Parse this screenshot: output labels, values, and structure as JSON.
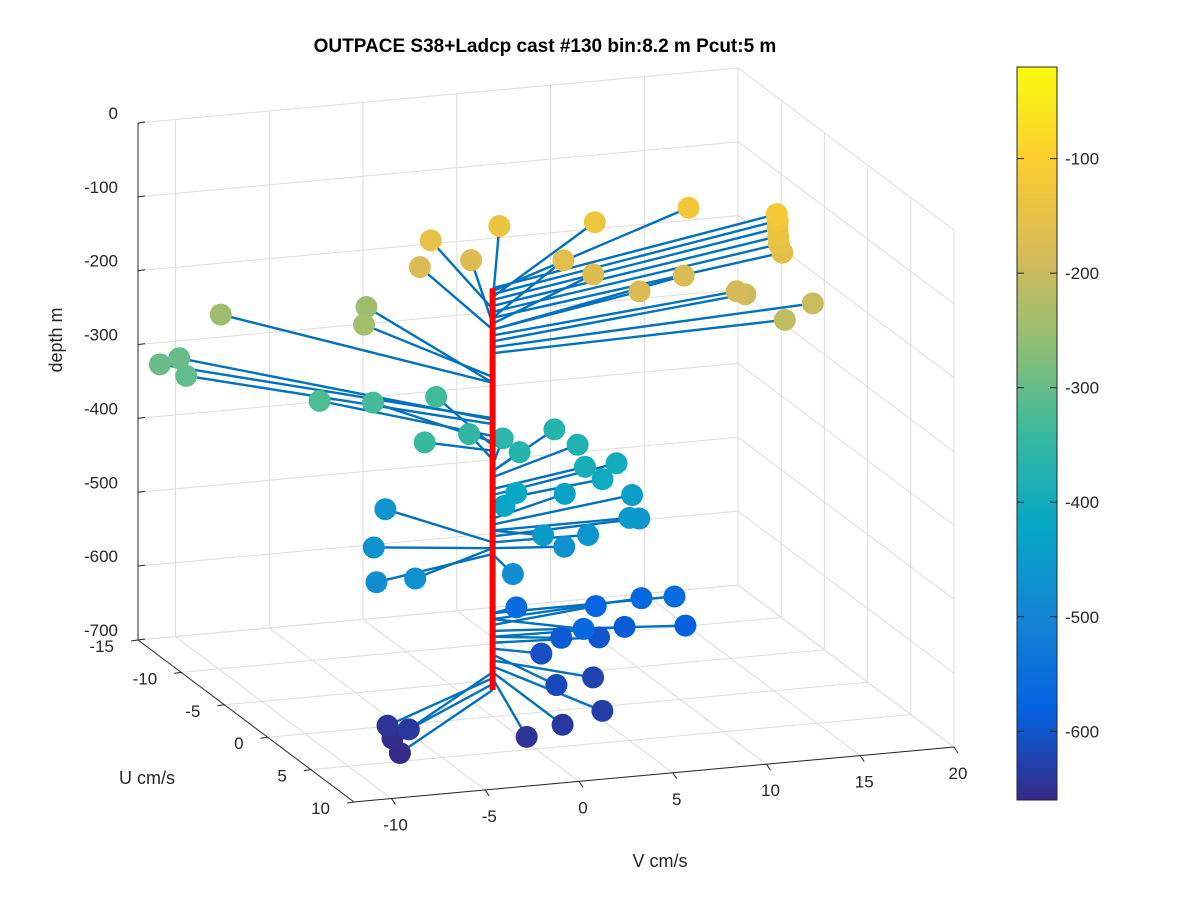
{
  "chart_data": {
    "type": "scatter",
    "title": "OUTPACE S38+Ladcp cast #130 bin:8.2 m  Pcut:5 m",
    "xlabel": "V cm/s",
    "ylabel": "U cm/s",
    "zlabel": "depth m",
    "xlim": [
      -12,
      20
    ],
    "ylim": [
      -15,
      10
    ],
    "zlim": [
      -700,
      0
    ],
    "x_ticks": [
      -10,
      -5,
      0,
      5,
      10,
      15,
      20
    ],
    "y_ticks": [
      -15,
      -10,
      -5,
      0,
      5,
      10
    ],
    "z_ticks": [
      0,
      -100,
      -200,
      -300,
      -400,
      -500,
      -600,
      -700
    ],
    "grid": true,
    "colorbar": {
      "colormap": "parula",
      "range": [
        -660,
        -20
      ],
      "ticks": [
        -100,
        -200,
        -300,
        -400,
        -500,
        -600
      ]
    },
    "vertical_line_color": "#ff0000",
    "stick_color": "#0072bd",
    "series": [
      {
        "points": [
          {
            "v": 18.2,
            "u": -6.6,
            "z": -120
          },
          {
            "v": 18.2,
            "u": -6.5,
            "z": -128
          },
          {
            "v": 18.1,
            "u": -6.3,
            "z": -136
          },
          {
            "v": 18.0,
            "u": -6.0,
            "z": -144
          },
          {
            "v": 17.9,
            "u": -5.7,
            "z": -152
          },
          {
            "v": 17.9,
            "u": -5.3,
            "z": -160
          },
          {
            "v": 14.6,
            "u": -9.0,
            "z": -124
          },
          {
            "v": 9.6,
            "u": -9.0,
            "z": -132
          },
          {
            "v": 5.2,
            "u": -10.5,
            "z": -140
          },
          {
            "v": 1.4,
            "u": -10.2,
            "z": -148
          },
          {
            "v": 7.9,
            "u": -5.5,
            "z": -168
          },
          {
            "v": 9.4,
            "u": -3.4,
            "z": -176
          },
          {
            "v": 14.4,
            "u": -3.0,
            "z": -184
          },
          {
            "v": 12.5,
            "u": -5.0,
            "z": -176
          },
          {
            "v": 15.0,
            "u": -3.3,
            "z": -192
          },
          {
            "v": 18.0,
            "u": -2.0,
            "z": -200
          },
          {
            "v": 16.0,
            "u": -0.9,
            "z": -208
          },
          {
            "v": 7.0,
            "u": -7.0,
            "z": -160
          },
          {
            "v": 3.0,
            "u": -9.0,
            "z": -168
          },
          {
            "v": 0.5,
            "u": -9.5,
            "z": -176
          },
          {
            "v": -1.2,
            "u": -12.0,
            "z": -248
          },
          {
            "v": -2.8,
            "u": -8.8,
            "z": -240
          },
          {
            "v": -8.6,
            "u": -12.8,
            "z": -248
          },
          {
            "v": -6.0,
            "u": -7.0,
            "z": -320
          },
          {
            "v": -12.4,
            "u": -11.6,
            "z": -296
          },
          {
            "v": -11.5,
            "u": -10.5,
            "z": -304
          },
          {
            "v": -11.0,
            "u": -12.4,
            "z": -298
          },
          {
            "v": -3.2,
            "u": -6.9,
            "z": -328
          },
          {
            "v": 0.4,
            "u": -7.4,
            "z": -333
          },
          {
            "v": -2.7,
            "u": -2.0,
            "z": -340
          },
          {
            "v": 0.5,
            "u": -3.8,
            "z": -352
          },
          {
            "v": 2.2,
            "u": -3.6,
            "z": -360
          },
          {
            "v": 5.6,
            "u": -5.0,
            "z": -368
          },
          {
            "v": 6.1,
            "u": -3.4,
            "z": -376
          },
          {
            "v": 2.5,
            "u": -2.3,
            "z": -368
          },
          {
            "v": 7.9,
            "u": -2.8,
            "z": -400
          },
          {
            "v": 6.6,
            "u": -1.6,
            "z": -408
          },
          {
            "v": 5.8,
            "u": -1.9,
            "z": -392
          },
          {
            "v": 2.0,
            "u": -1.6,
            "z": -416
          },
          {
            "v": 1.0,
            "u": -0.8,
            "z": -424
          },
          {
            "v": 5.0,
            "u": -2.5,
            "z": -432
          },
          {
            "v": 8.5,
            "u": -2.3,
            "z": -440
          },
          {
            "v": 7.3,
            "u": 0.0,
            "z": -448
          },
          {
            "v": 8.1,
            "u": -0.6,
            "z": -456
          },
          {
            "v": 2.1,
            "u": 1.3,
            "z": -448
          },
          {
            "v": 5.0,
            "u": 0.2,
            "z": -464
          },
          {
            "v": 3.5,
            "u": 0.7,
            "z": -472
          },
          {
            "v": -3.0,
            "u": -5.9,
            "z": -464
          },
          {
            "v": -5.6,
            "u": -1.6,
            "z": -472
          },
          {
            "v": -7.3,
            "u": 2.4,
            "z": -480
          },
          {
            "v": -5.6,
            "u": 3.2,
            "z": -472
          },
          {
            "v": -0.3,
            "u": 3.0,
            "z": -480
          },
          {
            "v": 1.5,
            "u": -0.5,
            "z": -560
          },
          {
            "v": 3.7,
            "u": 2.5,
            "z": -568
          },
          {
            "v": 6.1,
            "u": -1.3,
            "z": -576
          },
          {
            "v": 8.4,
            "u": -1.0,
            "z": -568
          },
          {
            "v": 9.7,
            "u": 0.0,
            "z": -560
          },
          {
            "v": 9.5,
            "u": 1.7,
            "z": -584
          },
          {
            "v": 6.9,
            "u": 0.3,
            "z": -592
          },
          {
            "v": 5.4,
            "u": 0.6,
            "z": -600
          },
          {
            "v": 3.2,
            "u": 1.0,
            "z": -592
          },
          {
            "v": 2.0,
            "u": 1.3,
            "z": -608
          },
          {
            "v": 1.1,
            "u": 5.0,
            "z": -616
          },
          {
            "v": 3.7,
            "u": 3.6,
            "z": -624
          },
          {
            "v": 2.4,
            "u": 7.5,
            "z": -632
          },
          {
            "v": 0.0,
            "u": 8.1,
            "z": -640
          },
          {
            "v": -2.1,
            "u": 8.5,
            "z": -648
          },
          {
            "v": -7.6,
            "u": 6.8,
            "z": -640
          },
          {
            "v": -8.0,
            "u": 5.2,
            "z": -648
          },
          {
            "v": -8.2,
            "u": 6.2,
            "z": -656
          },
          {
            "v": -8.4,
            "u": 7.5,
            "z": -664
          }
        ]
      }
    ]
  }
}
